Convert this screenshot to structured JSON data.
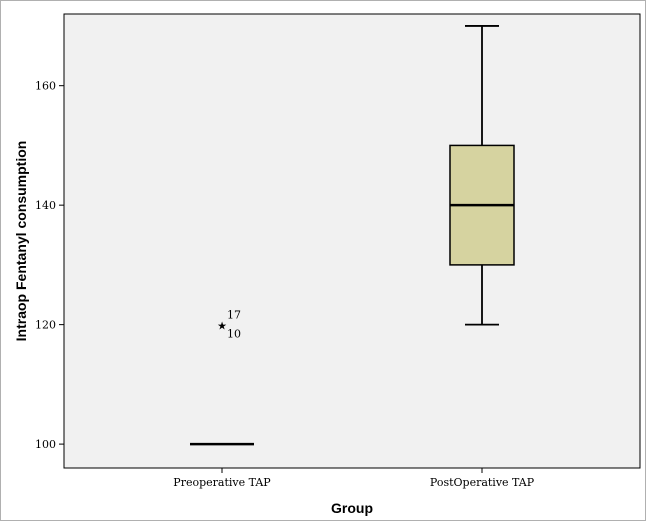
{
  "chart_data": {
    "type": "boxplot",
    "xlabel": "Group",
    "ylabel": "Intraop  Fentanyl consumption",
    "ylim": [
      96,
      172
    ],
    "yticks": [
      100,
      120,
      140,
      160
    ],
    "grid": false,
    "box_fill": "#d6d3a0",
    "background": "#f1f1f1",
    "categories": [
      "Preoperative TAP",
      "PostOperative TAP"
    ],
    "groups": [
      {
        "name": "Preoperative TAP",
        "min": 100,
        "q1": 100,
        "median": 100,
        "q3": 100,
        "max": 100,
        "outliers": [
          {
            "value": 120,
            "marker": "star",
            "labels": [
              "17",
              "10"
            ]
          }
        ]
      },
      {
        "name": "PostOperative TAP",
        "min": 120,
        "q1": 130,
        "median": 140,
        "q3": 150,
        "max": 170,
        "outliers": []
      }
    ]
  }
}
